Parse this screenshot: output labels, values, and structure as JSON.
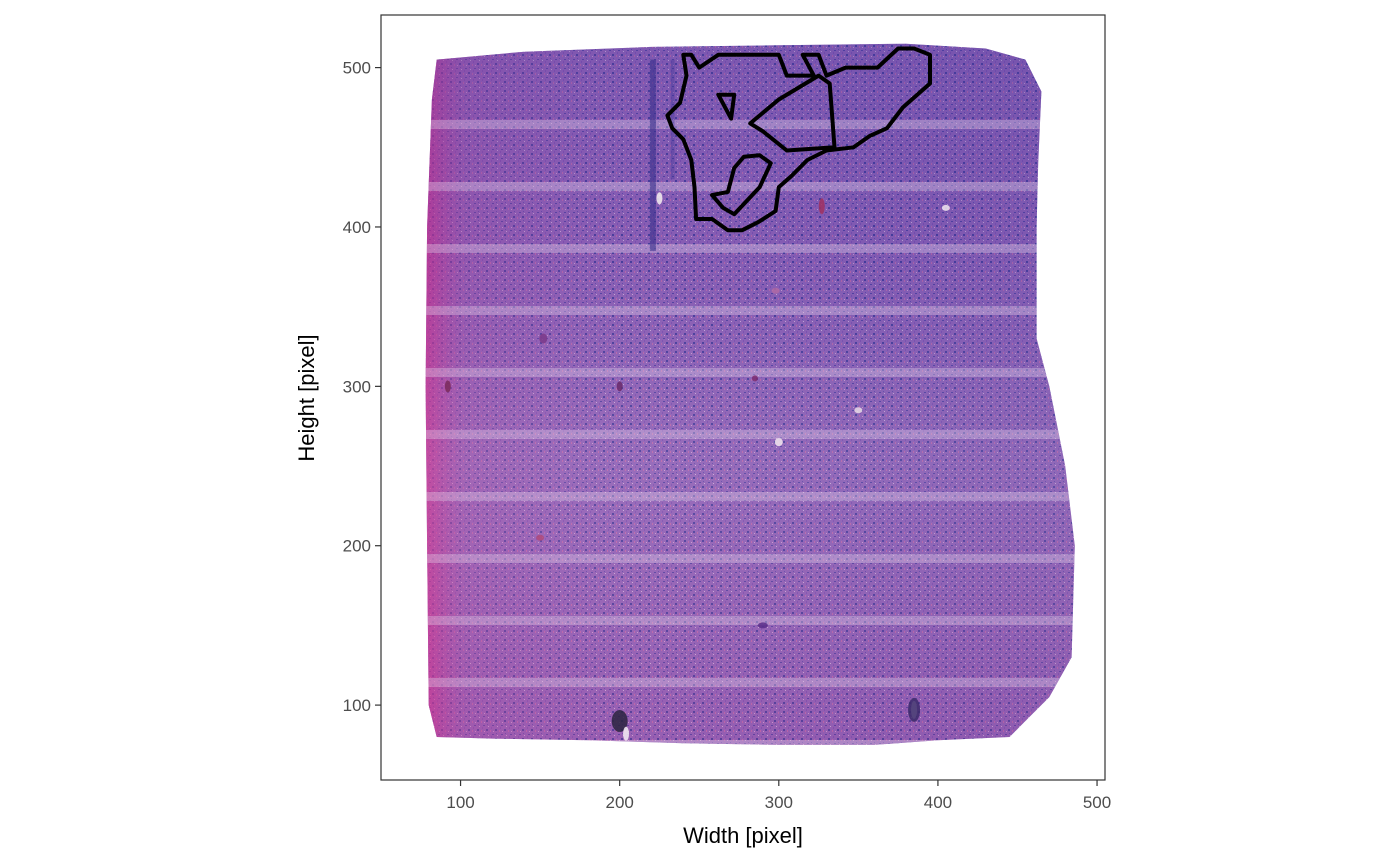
{
  "chart_data": {
    "type": "image-overlay",
    "xlabel": "Width [pixel]",
    "ylabel": "Height [pixel]",
    "xlim": [
      50,
      505
    ],
    "ylim": [
      53,
      533
    ],
    "x_ticks": [
      100,
      200,
      300,
      400,
      500
    ],
    "y_ticks": [
      100,
      200,
      300,
      400,
      500
    ],
    "x_tick_labels": [
      "100",
      "200",
      "300",
      "400",
      "500"
    ],
    "y_tick_labels": [
      "100",
      "200",
      "300",
      "400",
      "500"
    ],
    "grid": false,
    "background_image": "histology-tissue-section",
    "tissue_outline": [
      [
        85,
        505
      ],
      [
        140,
        510
      ],
      [
        220,
        513
      ],
      [
        300,
        514
      ],
      [
        380,
        515
      ],
      [
        430,
        512
      ],
      [
        455,
        505
      ],
      [
        465,
        485
      ],
      [
        463,
        440
      ],
      [
        462,
        400
      ],
      [
        462,
        330
      ],
      [
        470,
        300
      ],
      [
        480,
        250
      ],
      [
        486,
        200
      ],
      [
        484,
        130
      ],
      [
        470,
        105
      ],
      [
        455,
        90
      ],
      [
        445,
        80
      ],
      [
        400,
        78
      ],
      [
        360,
        75
      ],
      [
        300,
        75
      ],
      [
        240,
        76
      ],
      [
        180,
        78
      ],
      [
        120,
        79
      ],
      [
        85,
        80
      ],
      [
        80,
        100
      ],
      [
        79,
        200
      ],
      [
        78,
        300
      ],
      [
        79,
        400
      ],
      [
        82,
        480
      ]
    ],
    "tissue_colors": [
      "#5a3d9c",
      "#8a52b3",
      "#c0569e",
      "#b79ac6",
      "#3d3590"
    ],
    "annotation_color": "#000000",
    "annotations": [
      {
        "points": [
          [
            240,
            508
          ],
          [
            245,
            508
          ],
          [
            250,
            500
          ],
          [
            262,
            508
          ],
          [
            300,
            508
          ],
          [
            305,
            495
          ],
          [
            322,
            495
          ],
          [
            315,
            508
          ],
          [
            325,
            508
          ],
          [
            330,
            495
          ],
          [
            342,
            500
          ],
          [
            362,
            500
          ],
          [
            375,
            512
          ],
          [
            385,
            512
          ],
          [
            395,
            508
          ],
          [
            395,
            490
          ],
          [
            378,
            475
          ],
          [
            368,
            462
          ],
          [
            357,
            457
          ],
          [
            347,
            450
          ],
          [
            330,
            448
          ],
          [
            318,
            442
          ],
          [
            308,
            432
          ],
          [
            300,
            425
          ],
          [
            298,
            410
          ],
          [
            287,
            403
          ],
          [
            277,
            398
          ],
          [
            268,
            398
          ],
          [
            258,
            405
          ],
          [
            248,
            405
          ],
          [
            247,
            425
          ],
          [
            245,
            442
          ],
          [
            240,
            455
          ],
          [
            233,
            462
          ],
          [
            230,
            470
          ],
          [
            238,
            478
          ],
          [
            242,
            495
          ]
        ]
      },
      {
        "points": [
          [
            262,
            483
          ],
          [
            272,
            483
          ],
          [
            270,
            468
          ],
          [
            262,
            483
          ]
        ]
      },
      {
        "points": [
          [
            282,
            465
          ],
          [
            300,
            480
          ],
          [
            325,
            495
          ],
          [
            332,
            490
          ],
          [
            335,
            450
          ],
          [
            305,
            448
          ],
          [
            290,
            460
          ],
          [
            282,
            465
          ]
        ]
      },
      {
        "points": [
          [
            272,
            437
          ],
          [
            278,
            444
          ],
          [
            288,
            445
          ],
          [
            295,
            440
          ],
          [
            288,
            425
          ],
          [
            272,
            408
          ],
          [
            265,
            412
          ],
          [
            258,
            420
          ],
          [
            268,
            422
          ],
          [
            272,
            437
          ]
        ]
      }
    ]
  }
}
